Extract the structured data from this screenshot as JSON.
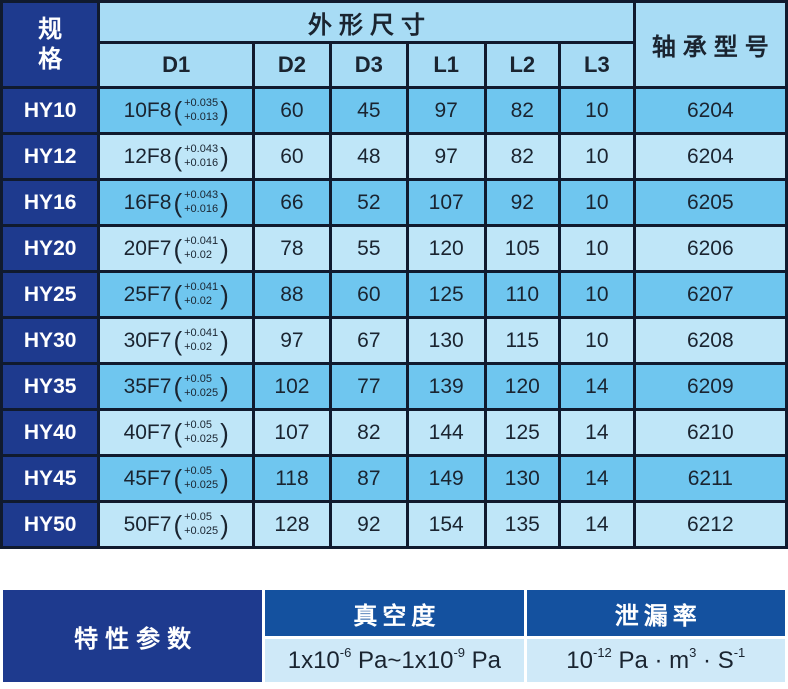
{
  "dim_table": {
    "spec_header": "规格",
    "dims_group_header": "外形尺寸",
    "dim_columns": [
      "D1",
      "D2",
      "D3",
      "L1",
      "L2",
      "L3"
    ],
    "bearing_header": "轴承型号",
    "rows": [
      {
        "spec": "HY10",
        "d1": "10F8",
        "d1_tol_upper": "+0.035",
        "d1_tol_lower": "+0.013",
        "d2": "60",
        "d3": "45",
        "l1": "97",
        "l2": "82",
        "l3": "10",
        "bearing": "6204"
      },
      {
        "spec": "HY12",
        "d1": "12F8",
        "d1_tol_upper": "+0.043",
        "d1_tol_lower": "+0.016",
        "d2": "60",
        "d3": "48",
        "l1": "97",
        "l2": "82",
        "l3": "10",
        "bearing": "6204"
      },
      {
        "spec": "HY16",
        "d1": "16F8",
        "d1_tol_upper": "+0.043",
        "d1_tol_lower": "+0.016",
        "d2": "66",
        "d3": "52",
        "l1": "107",
        "l2": "92",
        "l3": "10",
        "bearing": "6205"
      },
      {
        "spec": "HY20",
        "d1": "20F7",
        "d1_tol_upper": "+0.041",
        "d1_tol_lower": "+0.02",
        "d2": "78",
        "d3": "55",
        "l1": "120",
        "l2": "105",
        "l3": "10",
        "bearing": "6206"
      },
      {
        "spec": "HY25",
        "d1": "25F7",
        "d1_tol_upper": "+0.041",
        "d1_tol_lower": "+0.02",
        "d2": "88",
        "d3": "60",
        "l1": "125",
        "l2": "110",
        "l3": "10",
        "bearing": "6207"
      },
      {
        "spec": "HY30",
        "d1": "30F7",
        "d1_tol_upper": "+0.041",
        "d1_tol_lower": "+0.02",
        "d2": "97",
        "d3": "67",
        "l1": "130",
        "l2": "115",
        "l3": "10",
        "bearing": "6208"
      },
      {
        "spec": "HY35",
        "d1": "35F7",
        "d1_tol_upper": "+0.05",
        "d1_tol_lower": "+0.025",
        "d2": "102",
        "d3": "77",
        "l1": "139",
        "l2": "120",
        "l3": "14",
        "bearing": "6209"
      },
      {
        "spec": "HY40",
        "d1": "40F7",
        "d1_tol_upper": "+0.05",
        "d1_tol_lower": "+0.025",
        "d2": "107",
        "d3": "82",
        "l1": "144",
        "l2": "125",
        "l3": "14",
        "bearing": "6210"
      },
      {
        "spec": "HY45",
        "d1": "45F7",
        "d1_tol_upper": "+0.05",
        "d1_tol_lower": "+0.025",
        "d2": "118",
        "d3": "87",
        "l1": "149",
        "l2": "130",
        "l3": "14",
        "bearing": "6211"
      },
      {
        "spec": "HY50",
        "d1": "50F7",
        "d1_tol_upper": "+0.05",
        "d1_tol_lower": "+0.025",
        "d2": "128",
        "d3": "92",
        "l1": "154",
        "l2": "135",
        "l3": "14",
        "bearing": "6212"
      }
    ]
  },
  "params_table": {
    "title": "特性参数",
    "vacuum": {
      "label": "真空度",
      "p1": "1x10",
      "e1": "-6",
      "p2": " Pa~1x10",
      "e2": "-9",
      "p3": " Pa"
    },
    "leakage": {
      "label": "泄漏率",
      "p1": "10",
      "e1": "-12",
      "p2": " Pa · m",
      "e2": "3",
      "p3": " · S",
      "e3": "-1"
    }
  },
  "colors": {
    "navy": "#1e3a8e",
    "royal_blue": "#14519f",
    "header_light_blue": "#a8dcf5",
    "row_medium_blue": "#6fc6ef",
    "row_light_blue": "#bfe6f8",
    "params_value_blue": "#cfe9f8",
    "border_dark": "#101a2e",
    "text_dark": "#1a2430",
    "text_white": "#ffffff"
  }
}
